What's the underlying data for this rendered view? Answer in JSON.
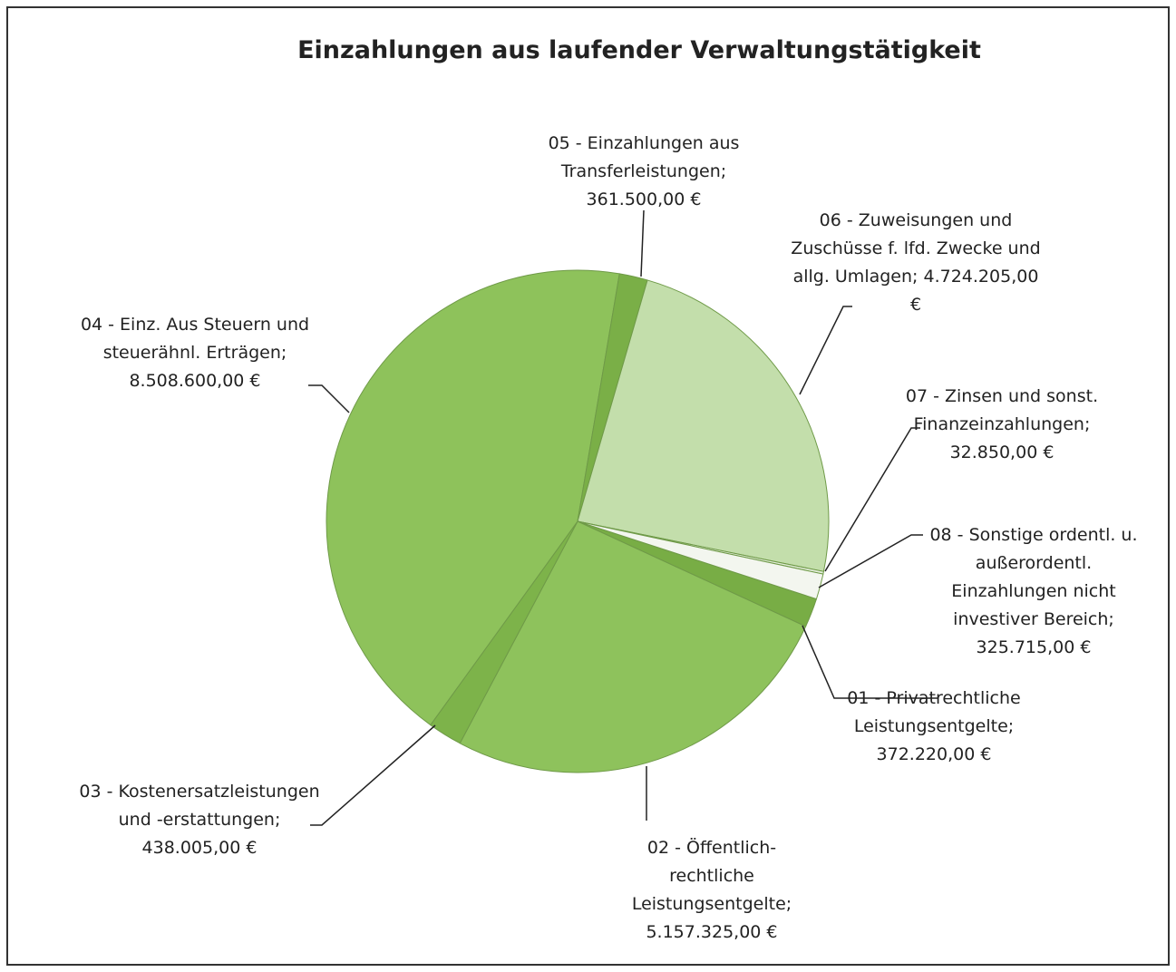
{
  "chart_data": {
    "type": "pie",
    "title": "Einzahlungen aus laufender Verwaltungstätigkeit",
    "separator": ";",
    "categories": [
      "01 - Privatrechtliche Leistungsentgelte",
      "02 - Öffentlich-rechtliche Leistungsentgelte",
      "03 - Kostenersatzleistungen und -erstattungen",
      "04 - Einz. Aus Steuern und steuerähnl. Erträgen",
      "05 - Einzahlungen aus Transferleistungen",
      "06 - Zuweisungen und Zuschüsse f. lfd. Zwecke und allg. Umlagen",
      "07 - Zinsen und sonst. Finanzeinzahlungen",
      "08 - Sonstige ordentl. u. außerordentl. Einzahlungen nicht investiver Bereich"
    ],
    "values": [
      372220,
      5157325,
      438005,
      8508600,
      361500,
      4724205,
      32850,
      325715
    ],
    "value_labels": [
      "372.220,00 €",
      "5.157.325,00 €",
      "438.005,00 €",
      "8.508.600,00 €",
      "361.500,00 €",
      "4.724.205,00 €",
      "32.850,00 €",
      "325.715,00 €"
    ],
    "colors": [
      "#78ad45",
      "#8ec25c",
      "#7db34a",
      "#8ec25b",
      "#7aaf47",
      "#c3deab",
      "#e4eedb",
      "#f3f6ef"
    ]
  }
}
